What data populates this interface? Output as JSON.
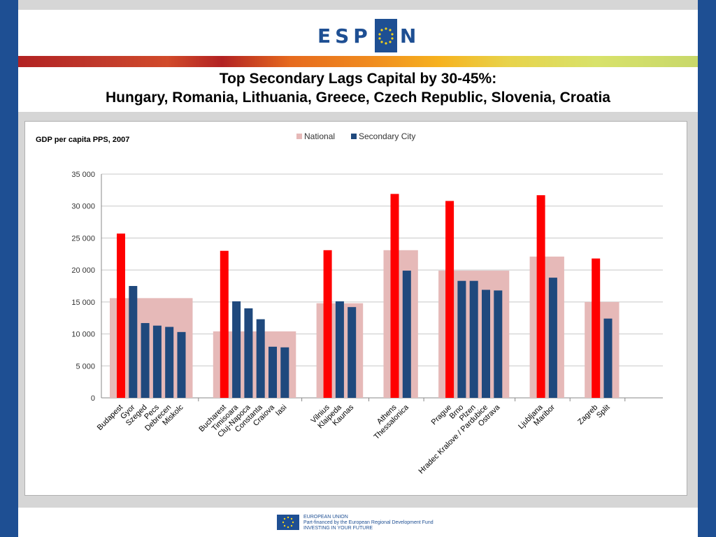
{
  "logo": {
    "text_left": "ESP",
    "text_right": "N"
  },
  "slide": {
    "title_line1": "Top Secondary Lags Capital by 30-45%:",
    "title_line2": "Hungary, Romania, Lithuania, Greece, Czech Republic, Slovenia, Croatia"
  },
  "footer": {
    "line1": "EUROPEAN UNION",
    "line2": "Part-financed by the European Regional Development Fund",
    "line3": "INVESTING IN YOUR FUTURE"
  },
  "colors": {
    "capital": "#ff0000",
    "secondary": "#1f497d",
    "national": "#e6b9b8",
    "brand": "#1e4f93"
  },
  "chart_data": {
    "type": "bar",
    "title": "GDP per capita PPS, 2007",
    "ylim": [
      0,
      35000
    ],
    "yticks": [
      0,
      5000,
      10000,
      15000,
      20000,
      25000,
      30000,
      35000
    ],
    "ytick_labels": [
      "0",
      "5 000",
      "10 000",
      "15 000",
      "20 000",
      "25 000",
      "30 000",
      "35 000"
    ],
    "grid": true,
    "legend": {
      "position": "top",
      "entries": [
        "National",
        "Secondary City"
      ]
    },
    "groups": [
      {
        "national": 15600,
        "cities": [
          {
            "name": "Budapest",
            "value": 25700,
            "capital": true
          },
          {
            "name": "Gyor",
            "value": 17500
          },
          {
            "name": "Szeged",
            "value": 11700
          },
          {
            "name": "Pecs",
            "value": 11300
          },
          {
            "name": "Debrecen",
            "value": 11100
          },
          {
            "name": "Miskolc",
            "value": 10300
          }
        ]
      },
      {
        "national": 10400,
        "cities": [
          {
            "name": "Bucharest",
            "value": 23000,
            "capital": true
          },
          {
            "name": "Timisoara",
            "value": 15100
          },
          {
            "name": "Cluj-Napoca",
            "value": 14000
          },
          {
            "name": "Constanta",
            "value": 12300
          },
          {
            "name": "Craiova",
            "value": 8000
          },
          {
            "name": "Iasi",
            "value": 7900
          }
        ]
      },
      {
        "national": 14800,
        "cities": [
          {
            "name": "Vilnius",
            "value": 23100,
            "capital": true
          },
          {
            "name": "Klaipeda",
            "value": 15100
          },
          {
            "name": "Kaunas",
            "value": 14200
          }
        ]
      },
      {
        "national": 23100,
        "cities": [
          {
            "name": "Athens",
            "value": 31900,
            "capital": true
          },
          {
            "name": "Thessalonica",
            "value": 19900
          }
        ]
      },
      {
        "national": 19900,
        "cities": [
          {
            "name": "Prague",
            "value": 30800,
            "capital": true
          },
          {
            "name": "Brno",
            "value": 18300
          },
          {
            "name": "Plzen",
            "value": 18300
          },
          {
            "name": "Hradec Kralove / Pardubice",
            "value": 16900
          },
          {
            "name": "Ostrava",
            "value": 16800
          }
        ]
      },
      {
        "national": 22100,
        "cities": [
          {
            "name": "Ljubljana",
            "value": 31700,
            "capital": true
          },
          {
            "name": "Maribor",
            "value": 18800
          }
        ]
      },
      {
        "national": 15000,
        "cities": [
          {
            "name": "Zagreb",
            "value": 21800,
            "capital": true
          },
          {
            "name": "Split",
            "value": 12400
          }
        ]
      }
    ]
  }
}
